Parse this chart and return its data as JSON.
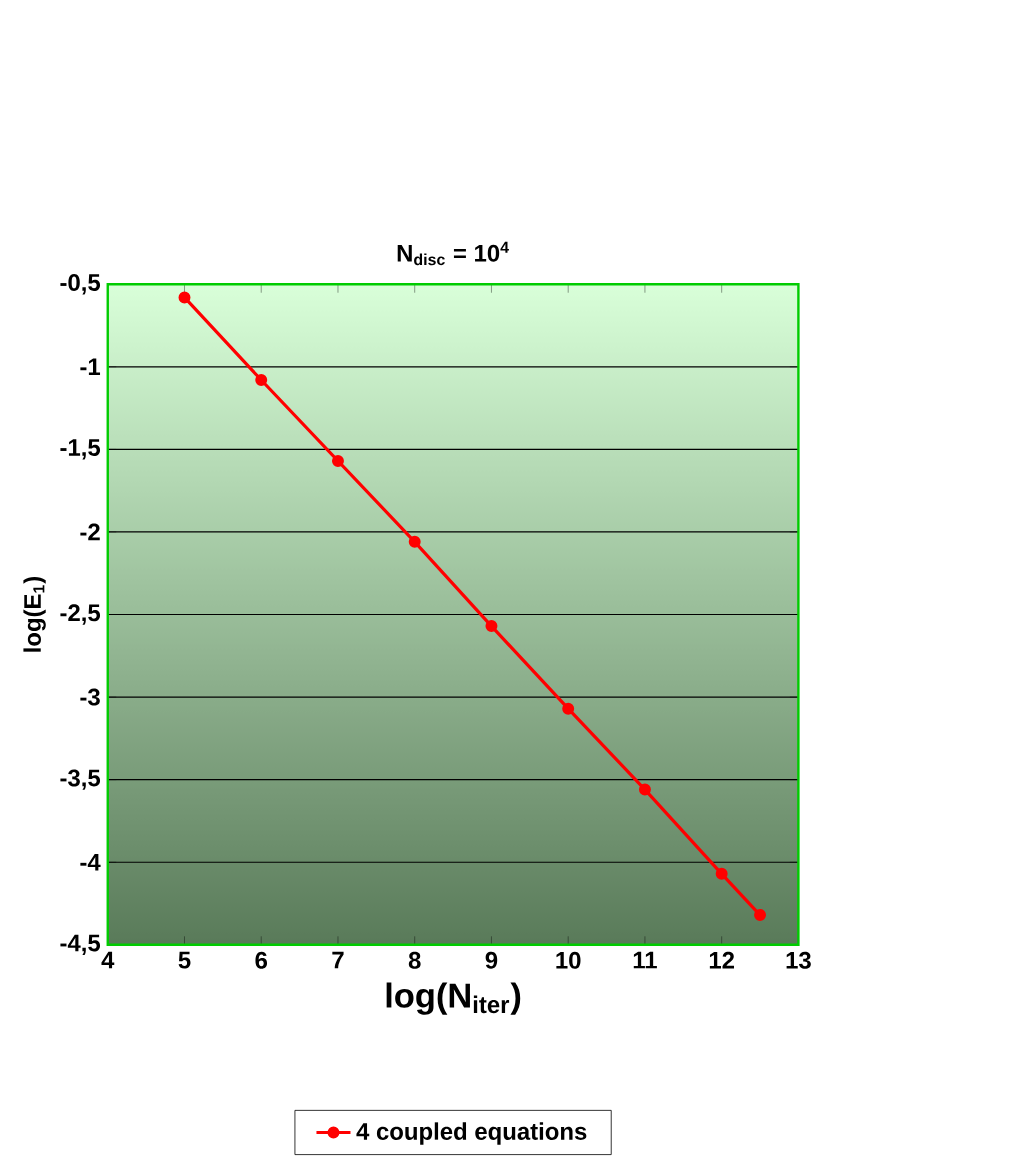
{
  "chart_data": {
    "type": "line",
    "title": "N$_{disc}$ = 10$^{4}$",
    "xlabel": "log(N$_{iter}$)",
    "ylabel": "log(E$_{1}$)",
    "x": [
      5,
      6,
      7,
      8,
      9,
      10,
      11,
      12,
      12.5
    ],
    "series": [
      {
        "name": "4 coupled equations",
        "color": "#ff0000",
        "values": [
          -0.58,
          -1.08,
          -1.57,
          -2.06,
          -2.57,
          -3.07,
          -3.56,
          -4.07,
          -4.32
        ]
      }
    ],
    "xlim": [
      4,
      13
    ],
    "xticks": [
      4,
      5,
      6,
      7,
      8,
      9,
      10,
      11,
      12,
      13
    ],
    "ylim": [
      -4.5,
      -0.5
    ],
    "yticks": [
      {
        "value": -4.5,
        "label": "-4,5"
      },
      {
        "value": -4,
        "label": "-4"
      },
      {
        "value": -3.5,
        "label": "-3,5"
      },
      {
        "value": -3,
        "label": "-3"
      },
      {
        "value": -2.5,
        "label": "-2,5"
      },
      {
        "value": -2,
        "label": "-2"
      },
      {
        "value": -1.5,
        "label": "-1,5"
      },
      {
        "value": -1,
        "label": "-1"
      },
      {
        "value": -0.5,
        "label": "-0,5"
      }
    ],
    "grid": "y",
    "legend": "bottom",
    "marker": "circle",
    "line_style": "solid"
  }
}
